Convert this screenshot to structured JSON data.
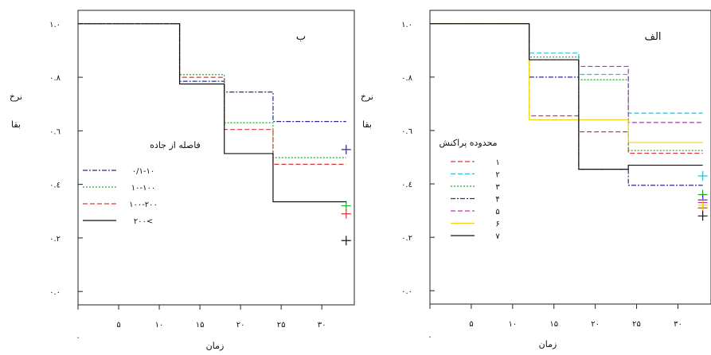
{
  "chart_data": [
    {
      "type": "line",
      "title": "ب",
      "xlabel": "زمان",
      "ylabel_lines": [
        "نرخ",
        "بقا"
      ],
      "x_ticks": [
        {
          "v": 0,
          "label": "۰"
        },
        {
          "v": 5,
          "label": "۵"
        },
        {
          "v": 10,
          "label": "۱۰"
        },
        {
          "v": 15,
          "label": "۱۵"
        },
        {
          "v": 20,
          "label": "۲۰"
        },
        {
          "v": 25,
          "label": "۲۵"
        },
        {
          "v": 30,
          "label": "۳۰"
        }
      ],
      "y_ticks": [
        {
          "v": 0.0,
          "label": "۰.۰"
        },
        {
          "v": 0.2,
          "label": "۰.۲"
        },
        {
          "v": 0.4,
          "label": "۰.٤"
        },
        {
          "v": 0.6,
          "label": "۰.٦"
        },
        {
          "v": 0.8,
          "label": "۰.۸"
        },
        {
          "v": 1.0,
          "label": "۱.۰"
        }
      ],
      "xlim": [
        0,
        34
      ],
      "ylim": [
        -0.05,
        1.05
      ],
      "legend_title": "فاصله از جاده",
      "legend_position": "left",
      "series": [
        {
          "name": "۰/۱-۱۰",
          "color": "#2b2b9a",
          "dash": "6,2,2,2",
          "x": [
            0,
            12.5,
            18,
            24,
            33
          ],
          "y": [
            1.0,
            0.785,
            0.745,
            0.635,
            0.635
          ],
          "censor": 0.53
        },
        {
          "name": "۱۰-۱۰۰",
          "color": "#1faa2a",
          "dash": "2,2",
          "x": [
            0,
            12.5,
            18,
            24,
            33
          ],
          "y": [
            1.0,
            0.81,
            0.63,
            0.5,
            0.5
          ],
          "censor": 0.32
        },
        {
          "name": "۱۰۰-۲۰۰",
          "color": "#d63838",
          "dash": "6,3",
          "x": [
            0,
            12.5,
            18,
            24,
            33
          ],
          "y": [
            1.0,
            0.8,
            0.605,
            0.475,
            0.475
          ],
          "censor": 0.29
        },
        {
          "name": "۲۰۰<",
          "color": "#111111",
          "dash": "",
          "x": [
            0,
            12.5,
            18,
            24,
            33
          ],
          "y": [
            1.0,
            0.775,
            0.515,
            0.335,
            0.335
          ],
          "censor": 0.19
        }
      ]
    },
    {
      "type": "line",
      "title": "الف",
      "xlabel": "زمان",
      "ylabel_lines": [
        "نرخ",
        "بقا"
      ],
      "x_ticks": [
        {
          "v": 0,
          "label": "۰"
        },
        {
          "v": 5,
          "label": "۵"
        },
        {
          "v": 10,
          "label": "۱۰"
        },
        {
          "v": 15,
          "label": "۱۵"
        },
        {
          "v": 20,
          "label": "۲۰"
        },
        {
          "v": 25,
          "label": "۲۵"
        },
        {
          "v": 30,
          "label": "۳۰"
        }
      ],
      "y_ticks": [
        {
          "v": 0.0,
          "label": "۰.۰"
        },
        {
          "v": 0.2,
          "label": "۰.۲"
        },
        {
          "v": 0.4,
          "label": "۰.٤"
        },
        {
          "v": 0.6,
          "label": "۰.٦"
        },
        {
          "v": 0.8,
          "label": "۰.۸"
        },
        {
          "v": 1.0,
          "label": "۱.۰"
        }
      ],
      "xlim": [
        0,
        34
      ],
      "ylim": [
        -0.05,
        1.05
      ],
      "legend_title": "محدوده پراکنش",
      "legend_position": "left",
      "series": [
        {
          "name": "۱",
          "color": "#d63838",
          "dash": "6,3",
          "x": [
            0,
            12,
            18,
            24,
            33
          ],
          "y": [
            1.0,
            0.655,
            0.595,
            0.515,
            0.515
          ],
          "censor": 0.31
        },
        {
          "name": "۲",
          "color": "#2bbcd6",
          "dash": "6,3",
          "x": [
            0,
            12,
            18,
            24,
            33
          ],
          "y": [
            1.0,
            0.89,
            0.81,
            0.665,
            0.665
          ],
          "censor": 0.43
        },
        {
          "name": "۳",
          "color": "#1faa2a",
          "dash": "2,2",
          "x": [
            0,
            12,
            18,
            24,
            33
          ],
          "y": [
            1.0,
            0.875,
            0.79,
            0.525,
            0.525
          ],
          "censor": 0.36
        },
        {
          "name": "۴",
          "color": "#2b2b9a",
          "dash": "6,2,2,2",
          "x": [
            0,
            12,
            18,
            24,
            33
          ],
          "y": [
            1.0,
            0.8,
            0.455,
            0.395,
            0.395
          ],
          "censor": 0.34
        },
        {
          "name": "۵",
          "color": "#c02bc8",
          "dash": "6,3",
          "x": [
            0,
            12,
            18,
            24,
            33
          ],
          "y": [
            1.0,
            0.865,
            0.84,
            0.63,
            0.63
          ],
          "censor": 0.33
        },
        {
          "name": "۶",
          "color": "#f2d21a",
          "dash": "",
          "x": [
            0,
            12,
            18,
            24,
            33
          ],
          "y": [
            1.0,
            0.64,
            0.64,
            0.555,
            0.555
          ],
          "censor": 0.32
        },
        {
          "name": "۷",
          "color": "#111111",
          "dash": "",
          "x": [
            0,
            12,
            18,
            24,
            33
          ],
          "y": [
            1.0,
            0.865,
            0.455,
            0.47,
            0.47
          ],
          "censor": 0.28
        }
      ]
    }
  ]
}
